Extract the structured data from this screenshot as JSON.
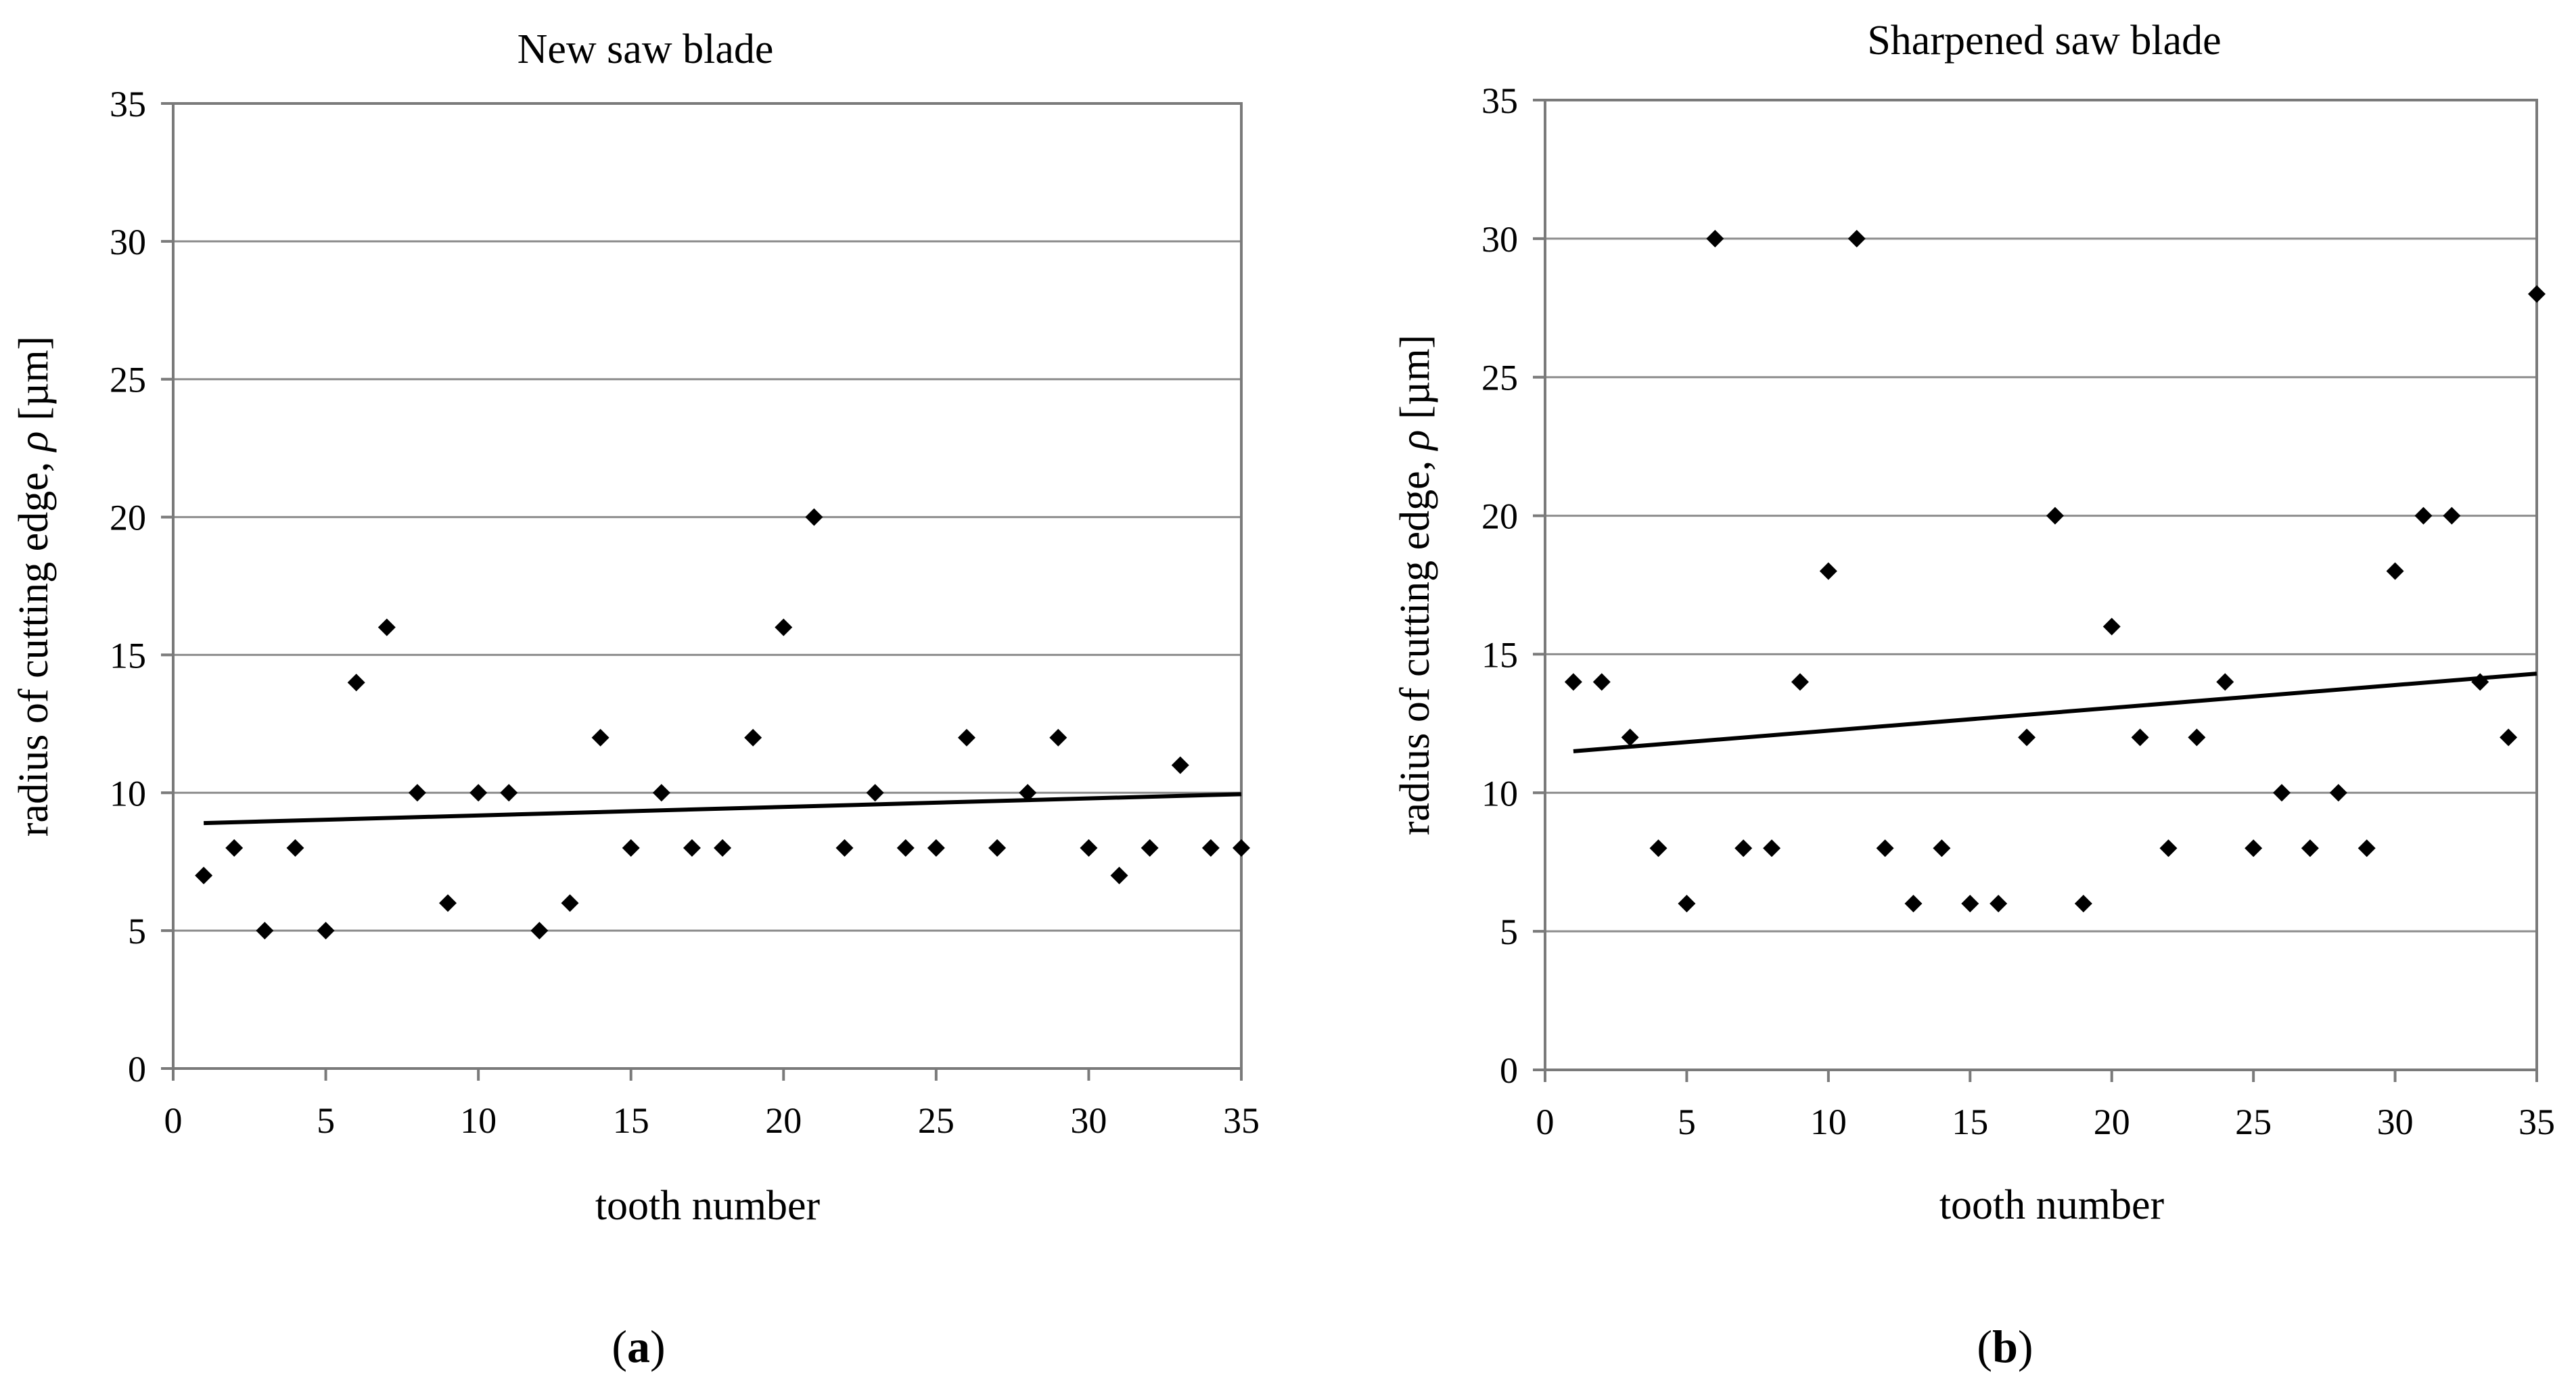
{
  "chart_data": [
    {
      "type": "scatter",
      "panel_label": {
        "open": "(",
        "letter": "a",
        "close": ")"
      },
      "title": "New saw blade",
      "xlabel": "tooth number",
      "ylabel_prefix": "radius of cutting edge, ",
      "ylabel_symbol": "ρ",
      "ylabel_suffix": " [µm]",
      "xlim": [
        0,
        35
      ],
      "ylim": [
        0,
        35
      ],
      "x_ticks": [
        0,
        5,
        10,
        15,
        20,
        25,
        30,
        35
      ],
      "y_ticks": [
        0,
        5,
        10,
        15,
        20,
        25,
        30,
        35
      ],
      "grid": "horizontal",
      "legend": "none",
      "series": [
        {
          "marker": "diamond",
          "x": [
            1,
            2,
            3,
            4,
            5,
            6,
            7,
            8,
            9,
            10,
            11,
            12,
            13,
            14,
            15,
            16,
            17,
            18,
            19,
            20,
            21,
            22,
            23,
            24,
            25,
            26,
            27,
            28,
            29,
            30,
            31,
            32,
            33,
            34,
            35
          ],
          "y": [
            7,
            8,
            5,
            8,
            5,
            14,
            16,
            10,
            6,
            10,
            10,
            5,
            6,
            12,
            8,
            10,
            8,
            8,
            12,
            16,
            20,
            8,
            10,
            8,
            8,
            12,
            8,
            10,
            12,
            8,
            7,
            8,
            11,
            8,
            8
          ]
        }
      ],
      "trendline": {
        "type": "linear",
        "x": [
          1,
          35
        ],
        "y": [
          8.9,
          9.95
        ]
      }
    },
    {
      "type": "scatter",
      "panel_label": {
        "open": "(",
        "letter": "b",
        "close": ")"
      },
      "title": "Sharpened saw blade",
      "xlabel": "tooth number",
      "ylabel_prefix": "radius of cutting edge, ",
      "ylabel_symbol": "ρ",
      "ylabel_suffix": " [µm]",
      "xlim": [
        0,
        35
      ],
      "ylim": [
        0,
        35
      ],
      "x_ticks": [
        0,
        5,
        10,
        15,
        20,
        25,
        30,
        35
      ],
      "y_ticks": [
        0,
        5,
        10,
        15,
        20,
        25,
        30,
        35
      ],
      "grid": "horizontal",
      "legend": "none",
      "series": [
        {
          "marker": "diamond",
          "x": [
            1,
            2,
            3,
            4,
            5,
            6,
            7,
            8,
            9,
            10,
            11,
            12,
            13,
            14,
            15,
            16,
            17,
            18,
            19,
            20,
            21,
            22,
            23,
            24,
            25,
            26,
            27,
            28,
            29,
            30,
            31,
            32,
            33,
            34,
            35
          ],
          "y": [
            14,
            14,
            12,
            8,
            6,
            30,
            8,
            8,
            14,
            18,
            30,
            8,
            6,
            8,
            6,
            6,
            12,
            20,
            6,
            16,
            12,
            8,
            12,
            14,
            8,
            10,
            8,
            10,
            8,
            18,
            20,
            20,
            14,
            12,
            28
          ]
        }
      ],
      "trendline": {
        "type": "linear",
        "x": [
          1,
          35
        ],
        "y": [
          11.5,
          14.3
        ]
      }
    }
  ]
}
